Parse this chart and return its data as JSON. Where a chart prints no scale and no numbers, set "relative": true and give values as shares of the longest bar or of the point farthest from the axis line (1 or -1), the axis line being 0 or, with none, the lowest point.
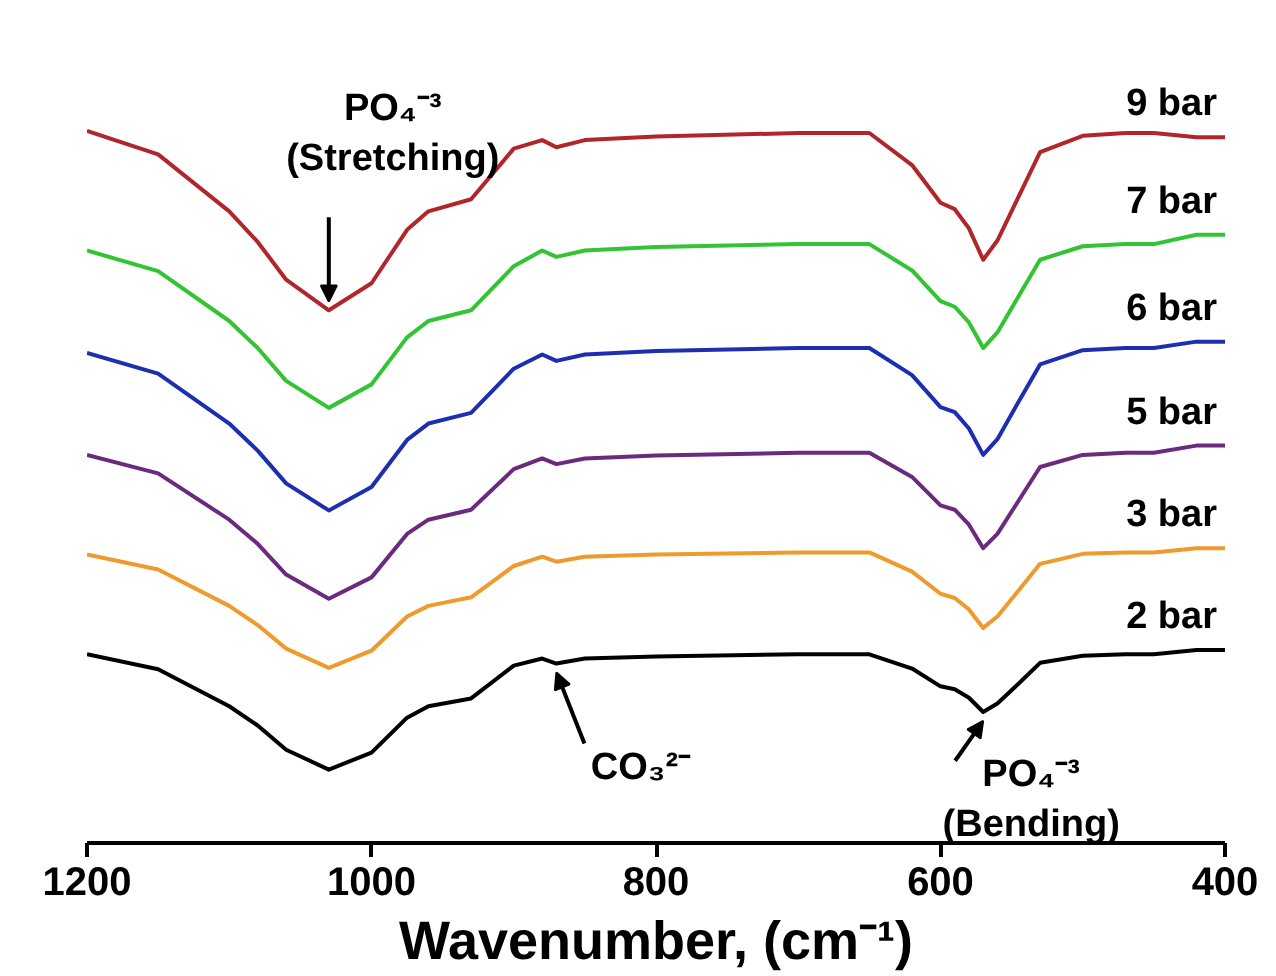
{
  "chart_data": {
    "type": "line",
    "relative": true,
    "xlabel": "Wavenumber, (cm⁻¹)",
    "xlim": [
      1200,
      400
    ],
    "xticks": [
      1200,
      1000,
      800,
      600,
      400
    ],
    "grid": false,
    "legend": false,
    "marker": "none",
    "line_style": "solid",
    "x": [
      1200,
      1150,
      1100,
      1080,
      1060,
      1030,
      1000,
      975,
      960,
      930,
      900,
      880,
      870,
      850,
      800,
      700,
      650,
      620,
      600,
      590,
      580,
      570,
      560,
      545,
      530,
      500,
      470,
      450,
      420,
      400
    ],
    "series": [
      {
        "name": "9 bar",
        "color": "#b0262a",
        "values": [
          1.0,
          0.967,
          0.887,
          0.844,
          0.791,
          0.748,
          0.786,
          0.861,
          0.887,
          0.904,
          0.975,
          0.987,
          0.977,
          0.987,
          0.992,
          0.997,
          0.997,
          0.952,
          0.899,
          0.89,
          0.863,
          0.819,
          0.846,
          0.908,
          0.97,
          0.993,
          0.997,
          0.997,
          0.991,
          0.991
        ]
      },
      {
        "name": "7 bar",
        "color": "#33c433",
        "values": [
          0.832,
          0.803,
          0.733,
          0.695,
          0.649,
          0.611,
          0.644,
          0.71,
          0.733,
          0.748,
          0.81,
          0.832,
          0.823,
          0.832,
          0.837,
          0.841,
          0.841,
          0.804,
          0.761,
          0.753,
          0.731,
          0.695,
          0.717,
          0.768,
          0.819,
          0.838,
          0.841,
          0.841,
          0.854,
          0.854
        ]
      },
      {
        "name": "6 bar",
        "color": "#1c2fb0",
        "values": [
          0.688,
          0.659,
          0.589,
          0.551,
          0.505,
          0.467,
          0.5,
          0.566,
          0.589,
          0.604,
          0.666,
          0.686,
          0.677,
          0.686,
          0.691,
          0.695,
          0.695,
          0.657,
          0.612,
          0.605,
          0.582,
          0.545,
          0.567,
          0.62,
          0.672,
          0.692,
          0.695,
          0.695,
          0.704,
          0.704
        ]
      },
      {
        "name": "5 bar",
        "color": "#6a2a7e",
        "values": [
          0.545,
          0.519,
          0.454,
          0.42,
          0.377,
          0.343,
          0.373,
          0.434,
          0.454,
          0.468,
          0.525,
          0.54,
          0.532,
          0.54,
          0.544,
          0.548,
          0.548,
          0.514,
          0.474,
          0.468,
          0.447,
          0.414,
          0.434,
          0.481,
          0.528,
          0.545,
          0.548,
          0.548,
          0.558,
          0.558
        ]
      },
      {
        "name": "3 bar",
        "color": "#ee9a2e",
        "values": [
          0.405,
          0.384,
          0.333,
          0.306,
          0.273,
          0.246,
          0.27,
          0.318,
          0.333,
          0.345,
          0.389,
          0.402,
          0.395,
          0.402,
          0.405,
          0.408,
          0.408,
          0.381,
          0.35,
          0.344,
          0.328,
          0.302,
          0.318,
          0.355,
          0.392,
          0.406,
          0.408,
          0.408,
          0.414,
          0.414
        ]
      },
      {
        "name": "2 bar",
        "color": "#000000",
        "values": [
          0.265,
          0.244,
          0.192,
          0.165,
          0.131,
          0.103,
          0.127,
          0.176,
          0.192,
          0.203,
          0.249,
          0.259,
          0.252,
          0.259,
          0.262,
          0.265,
          0.265,
          0.245,
          0.22,
          0.216,
          0.204,
          0.184,
          0.196,
          0.224,
          0.253,
          0.263,
          0.265,
          0.265,
          0.271,
          0.271
        ]
      }
    ],
    "annotations": [
      {
        "text": "PO₄⁻³\n(Stretching)",
        "x": 1030,
        "y": 0.748
      },
      {
        "text": "CO₃²⁻",
        "x": 870,
        "y": 0.252
      },
      {
        "text": "PO₄⁻³\n(Bending)",
        "x": 570,
        "y": 0.184
      }
    ]
  }
}
